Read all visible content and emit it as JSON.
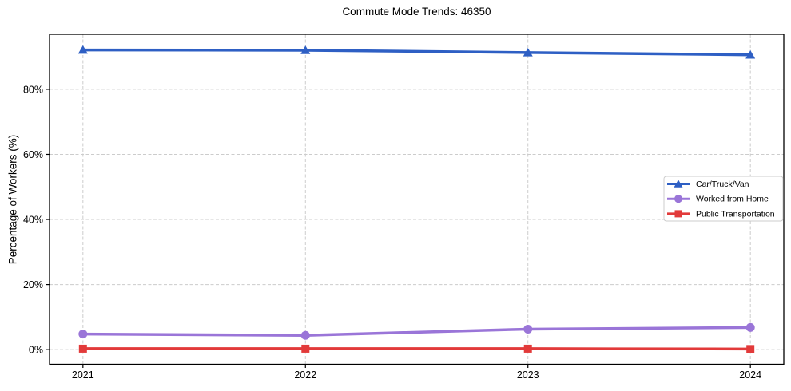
{
  "chart_data": {
    "type": "line",
    "title": "Commute Mode Trends: 46350",
    "xlabel": "",
    "ylabel": "Percentage of Workers (%)",
    "x": [
      "2021",
      "2022",
      "2023",
      "2024"
    ],
    "ylim": [
      -4.5,
      96.9
    ],
    "yticks": [
      {
        "value": 0,
        "label": "0%"
      },
      {
        "value": 20,
        "label": "20%"
      },
      {
        "value": 40,
        "label": "40%"
      },
      {
        "value": 60,
        "label": "60%"
      },
      {
        "value": 80,
        "label": "80%"
      }
    ],
    "grid": {
      "on": true,
      "style": "dashed",
      "color": "#cccccc"
    },
    "axis_color": "#000000",
    "background": "#ffffff",
    "series": [
      {
        "name": "Car/Truck/Van",
        "color": "#2e5fc4",
        "marker": "triangle",
        "values": [
          92.1,
          92.0,
          91.3,
          90.6
        ]
      },
      {
        "name": "Worked from Home",
        "color": "#9a75d8",
        "marker": "circle",
        "values": [
          4.8,
          4.4,
          6.3,
          6.8
        ]
      },
      {
        "name": "Public Transportation",
        "color": "#e23a3a",
        "marker": "square",
        "values": [
          0.3,
          0.3,
          0.3,
          0.2
        ]
      }
    ],
    "legend": {
      "position": "center right",
      "border_color": "#cccccc",
      "background": "#ffffff"
    }
  }
}
